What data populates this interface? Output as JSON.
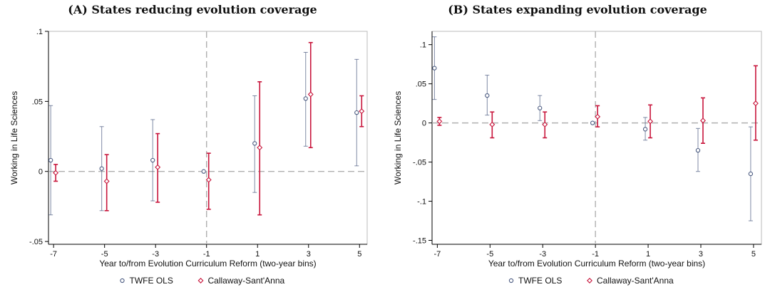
{
  "chart_data": [
    {
      "type": "scatter",
      "title": "(A) States reducing evolution coverage",
      "xlabel": "Year to/from Evolution Curriculum Reform (two-year bins)",
      "ylabel": "Working in Life Sciences",
      "x_ticks": [
        -7,
        -5,
        -3,
        -1,
        1,
        3,
        5
      ],
      "y_ticks": [
        -0.05,
        0,
        0.05,
        0.1
      ],
      "y_tick_labels": [
        "-.05",
        "0",
        ".05",
        ".1"
      ],
      "xlim": [
        -7.2,
        5.3
      ],
      "ylim": [
        -0.052,
        0.1
      ],
      "reference_lines": {
        "y": 0,
        "x": -1
      },
      "legend_placement": "bottom",
      "series": [
        {
          "name": "TWFE OLS",
          "color": "#4a5a80",
          "marker": "circle",
          "x": [
            -7,
            -5,
            -3,
            -1,
            1,
            3,
            5
          ],
          "y": [
            0.008,
            0.002,
            0.008,
            0.0,
            0.02,
            0.052,
            0.042
          ],
          "ci_low": [
            -0.031,
            -0.028,
            -0.021,
            null,
            -0.015,
            0.018,
            0.004
          ],
          "ci_high": [
            0.047,
            0.032,
            0.037,
            null,
            0.054,
            0.085,
            0.08
          ]
        },
        {
          "name": "Callaway-Sant'Anna",
          "color": "#c8163c",
          "marker": "diamond",
          "x": [
            -7,
            -5,
            -3,
            -1,
            1,
            3,
            5
          ],
          "y": [
            -0.001,
            -0.007,
            0.003,
            -0.006,
            0.017,
            0.055,
            0.043
          ],
          "ci_low": [
            -0.007,
            -0.028,
            -0.022,
            -0.027,
            -0.031,
            0.017,
            0.032
          ],
          "ci_high": [
            0.005,
            0.012,
            0.027,
            0.013,
            0.064,
            0.092,
            0.054
          ]
        }
      ]
    },
    {
      "type": "scatter",
      "title": "(B) States expanding evolution coverage",
      "xlabel": "Year to/from Evolution Curriculum Reform (two-year bins)",
      "ylabel": "Working in Life Sciences",
      "x_ticks": [
        -7,
        -5,
        -3,
        -1,
        1,
        3,
        5
      ],
      "y_ticks": [
        -0.15,
        -0.1,
        -0.05,
        0,
        0.05,
        0.1
      ],
      "y_tick_labels": [
        "-.15",
        "-.1",
        "-.05",
        "0",
        ".05",
        ".1"
      ],
      "xlim": [
        -7.2,
        5.3
      ],
      "ylim": [
        -0.155,
        0.117
      ],
      "reference_lines": {
        "y": 0,
        "x": -1
      },
      "legend_placement": "bottom",
      "series": [
        {
          "name": "TWFE OLS",
          "color": "#4a5a80",
          "marker": "circle",
          "x": [
            -7,
            -5,
            -3,
            -1,
            1,
            3,
            5
          ],
          "y": [
            0.07,
            0.035,
            0.019,
            0.0,
            -0.008,
            -0.035,
            -0.065
          ],
          "ci_low": [
            0.03,
            0.01,
            0.003,
            null,
            -0.022,
            -0.062,
            -0.125
          ],
          "ci_high": [
            0.11,
            0.061,
            0.035,
            null,
            0.007,
            -0.007,
            -0.005
          ]
        },
        {
          "name": "Callaway-Sant'Anna",
          "color": "#c8163c",
          "marker": "diamond",
          "x": [
            -7,
            -5,
            -3,
            -1,
            1,
            3,
            5
          ],
          "y": [
            0.002,
            -0.002,
            -0.002,
            0.008,
            0.002,
            0.003,
            0.025
          ],
          "ci_low": [
            -0.003,
            -0.019,
            -0.019,
            -0.005,
            -0.019,
            -0.026,
            -0.022
          ],
          "ci_high": [
            0.007,
            0.014,
            0.014,
            0.022,
            0.023,
            0.032,
            0.073
          ]
        }
      ]
    }
  ]
}
